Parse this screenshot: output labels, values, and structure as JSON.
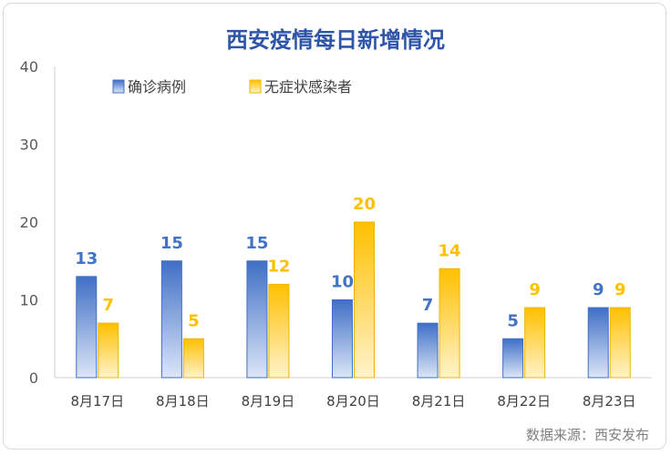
{
  "chart_data": {
    "type": "bar",
    "title": "西安疫情每日新增情况",
    "categories": [
      "8月17日",
      "8月18日",
      "8月19日",
      "8月20日",
      "8月21日",
      "8月22日",
      "8月23日"
    ],
    "series": [
      {
        "name": "确诊病例",
        "values": [
          13,
          15,
          15,
          10,
          7,
          5,
          9
        ],
        "color": "#4472c4"
      },
      {
        "name": "无症状感染者",
        "values": [
          7,
          5,
          12,
          20,
          14,
          9,
          9
        ],
        "color": "#ffc000"
      }
    ],
    "ylim": [
      0,
      40
    ],
    "yticks": [
      0,
      10,
      20,
      30,
      40
    ],
    "grid": false,
    "legend_position": "top-left",
    "source": "数据来源：西安发布",
    "label_colors": [
      "#4472c4",
      "#ffc000"
    ]
  }
}
